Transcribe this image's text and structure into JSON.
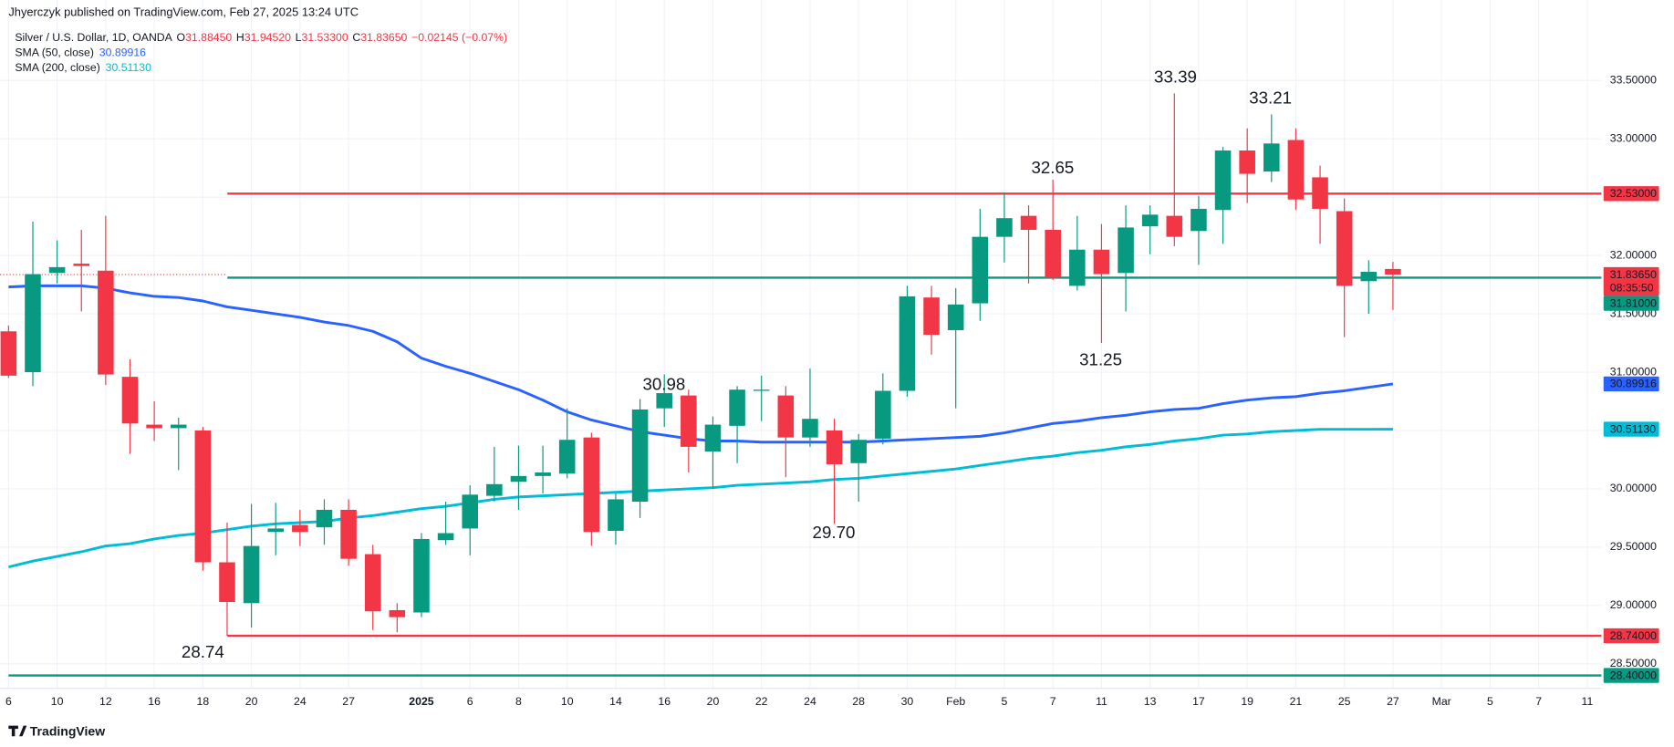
{
  "header": {
    "byline": "Jhyerczyk published on TradingView.com, Feb 27, 2025 13:24 UTC",
    "symbol": "Silver / U.S. Dollar, 1D, OANDA",
    "ohlc": [
      {
        "key": "O",
        "text": "31.88450"
      },
      {
        "key": "H",
        "text": "31.94520"
      },
      {
        "key": "L",
        "text": "31.53300"
      },
      {
        "key": "C",
        "text": "31.83650"
      }
    ],
    "change": "−0.02145 (−0.07%)"
  },
  "footer": {
    "brand": "TradingView"
  },
  "chart_data": {
    "type": "candlestick",
    "up_color": "#089981",
    "down_color": "#f23645",
    "grid": true,
    "categories": [
      "6",
      null,
      "10",
      null,
      "12",
      null,
      "16",
      null,
      "18",
      null,
      "20",
      null,
      "24",
      null,
      "27",
      null,
      null,
      "2025",
      null,
      "6",
      null,
      "8",
      null,
      "10",
      null,
      "14",
      null,
      "16",
      null,
      "20",
      null,
      "22",
      null,
      "24",
      null,
      "28",
      null,
      "30",
      null,
      "Feb",
      null,
      "5",
      null,
      "7",
      null,
      "11",
      null,
      "13",
      null,
      "17",
      null,
      "19",
      null,
      "21",
      null,
      "25",
      null,
      "27",
      null,
      "Mar",
      null,
      "5",
      null,
      "7",
      null,
      "11"
    ],
    "open": [
      31.35,
      31.0,
      31.85,
      31.93,
      31.87,
      30.96,
      30.55,
      30.52,
      30.5,
      29.37,
      29.02,
      29.63,
      29.69,
      29.67,
      29.82,
      29.44,
      28.96,
      28.94,
      29.56,
      29.66,
      29.94,
      30.06,
      30.11,
      30.13,
      30.44,
      29.64,
      29.89,
      30.69,
      30.8,
      30.32,
      30.54,
      30.84,
      30.8,
      30.44,
      30.5,
      30.22,
      30.43,
      30.84,
      31.64,
      31.36,
      31.59,
      32.16,
      32.34,
      32.22,
      31.74,
      32.05,
      31.85,
      32.25,
      32.34,
      32.21,
      32.39,
      32.9,
      32.72,
      32.99,
      32.67,
      32.38,
      31.78,
      31.8845,
      null,
      null,
      null,
      null,
      null,
      null,
      null,
      null
    ],
    "high": [
      31.4,
      32.29,
      32.13,
      32.22,
      32.34,
      31.11,
      30.75,
      30.61,
      30.53,
      29.71,
      29.87,
      29.88,
      29.82,
      29.91,
      29.91,
      29.52,
      29.02,
      29.62,
      29.89,
      30.03,
      30.36,
      30.37,
      30.37,
      30.69,
      30.48,
      29.96,
      30.77,
      30.98,
      30.85,
      30.62,
      30.88,
      30.97,
      30.88,
      31.03,
      30.6,
      30.47,
      30.99,
      31.74,
      31.74,
      31.72,
      32.4,
      32.54,
      32.43,
      32.65,
      32.34,
      32.27,
      32.43,
      32.43,
      33.39,
      32.51,
      32.93,
      33.09,
      33.21,
      33.09,
      32.77,
      32.49,
      31.96,
      31.9452,
      null,
      null,
      null,
      null,
      null,
      null,
      null,
      null
    ],
    "low": [
      30.95,
      30.88,
      31.76,
      31.52,
      30.89,
      30.3,
      30.41,
      30.16,
      29.3,
      28.74,
      28.81,
      29.43,
      29.51,
      29.52,
      29.34,
      28.79,
      28.77,
      28.9,
      29.52,
      29.43,
      29.89,
      29.82,
      29.96,
      30.09,
      29.51,
      29.52,
      29.75,
      30.53,
      30.14,
      30.0,
      30.22,
      30.58,
      30.1,
      30.36,
      29.7,
      29.89,
      30.38,
      30.79,
      31.15,
      30.69,
      31.44,
      31.94,
      31.76,
      31.79,
      31.7,
      31.25,
      31.52,
      32.01,
      32.08,
      31.92,
      32.1,
      32.45,
      32.63,
      32.39,
      32.1,
      31.3,
      31.5,
      31.533,
      null,
      null,
      null,
      null,
      null,
      null,
      null,
      null
    ],
    "close": [
      30.97,
      31.84,
      31.9,
      31.91,
      30.98,
      30.56,
      30.52,
      30.55,
      29.37,
      29.03,
      29.51,
      29.66,
      29.63,
      29.82,
      29.4,
      28.95,
      28.9,
      29.57,
      29.62,
      29.95,
      30.04,
      30.11,
      30.14,
      30.42,
      29.63,
      29.91,
      30.68,
      30.82,
      30.36,
      30.55,
      30.85,
      30.85,
      30.44,
      30.6,
      30.21,
      30.42,
      30.84,
      31.65,
      31.32,
      31.58,
      32.16,
      32.32,
      32.22,
      31.81,
      32.05,
      31.84,
      32.24,
      32.35,
      32.16,
      32.4,
      32.9,
      32.7,
      32.96,
      32.48,
      32.4,
      31.74,
      31.86,
      31.8365,
      null,
      null,
      null,
      null,
      null,
      null,
      null,
      null
    ],
    "overlays": [
      {
        "name": "SMA (50, close)",
        "color": "#2962ff",
        "last_label": "30.89916",
        "values": [
          31.73,
          31.74,
          31.74,
          31.74,
          31.72,
          31.68,
          31.65,
          31.64,
          31.61,
          31.56,
          31.53,
          31.5,
          31.47,
          31.43,
          31.4,
          31.35,
          31.26,
          31.12,
          31.05,
          30.99,
          30.92,
          30.85,
          30.76,
          30.66,
          30.59,
          30.54,
          30.49,
          30.46,
          30.43,
          30.41,
          30.41,
          30.4,
          30.4,
          30.4,
          30.4,
          30.4,
          30.41,
          30.42,
          30.43,
          30.44,
          30.45,
          30.48,
          30.52,
          30.56,
          30.58,
          30.61,
          30.63,
          30.66,
          30.68,
          30.69,
          30.73,
          30.76,
          30.78,
          30.79,
          30.82,
          30.84,
          30.87,
          30.89916,
          null,
          null,
          null,
          null,
          null,
          null,
          null,
          null
        ]
      },
      {
        "name": "SMA (200, close)",
        "color": "#00bcd4",
        "last_label": "30.51130",
        "values": [
          29.33,
          29.38,
          29.42,
          29.46,
          29.51,
          29.53,
          29.57,
          29.6,
          29.62,
          29.65,
          29.68,
          29.7,
          29.71,
          29.72,
          29.75,
          29.77,
          29.8,
          29.83,
          29.85,
          29.88,
          29.91,
          29.93,
          29.94,
          29.95,
          29.96,
          29.97,
          29.98,
          29.99,
          30.0,
          30.01,
          30.03,
          30.04,
          30.05,
          30.06,
          30.08,
          30.09,
          30.11,
          30.13,
          30.15,
          30.17,
          30.2,
          30.23,
          30.26,
          30.28,
          30.31,
          30.33,
          30.36,
          30.38,
          30.41,
          30.43,
          30.46,
          30.47,
          30.49,
          30.5,
          30.51,
          30.51,
          30.51,
          30.5113,
          null,
          null,
          null,
          null,
          null,
          null,
          null,
          null
        ]
      }
    ],
    "levels": [
      {
        "value": 32.53,
        "label": "32.53000",
        "color": "#f23645"
      },
      {
        "value": 31.81,
        "label": "31.81000",
        "color": "#089981"
      },
      {
        "value": 28.74,
        "label": "28.74000",
        "color": "#f23645"
      },
      {
        "value": 28.4,
        "label": "28.40000",
        "color": "#089981"
      }
    ],
    "last_price": {
      "value": 31.8365,
      "label": "31.83650",
      "countdown": "08:35:50",
      "color": "#f23645"
    },
    "annotations": [
      "33.39",
      "33.21",
      "32.65",
      "31.25",
      "30.98",
      "29.70",
      "28.74"
    ],
    "ylim": [
      28.29,
      34.19
    ],
    "yticks": [
      {
        "value": 28.5,
        "label": "28.50000"
      },
      {
        "value": 29,
        "label": "29.00000"
      },
      {
        "value": 29.5,
        "label": "29.50000"
      },
      {
        "value": 30,
        "label": "30.00000"
      },
      {
        "value": 30.5,
        "label": "30.50000"
      },
      {
        "value": 31,
        "label": "31.00000"
      },
      {
        "value": 31.5,
        "label": "31.50000"
      },
      {
        "value": 32,
        "label": "32.00000"
      },
      {
        "value": 32.5,
        "label": "32.50000"
      },
      {
        "value": 33,
        "label": "33.00000"
      },
      {
        "value": 33.5,
        "label": "33.50000"
      }
    ]
  }
}
